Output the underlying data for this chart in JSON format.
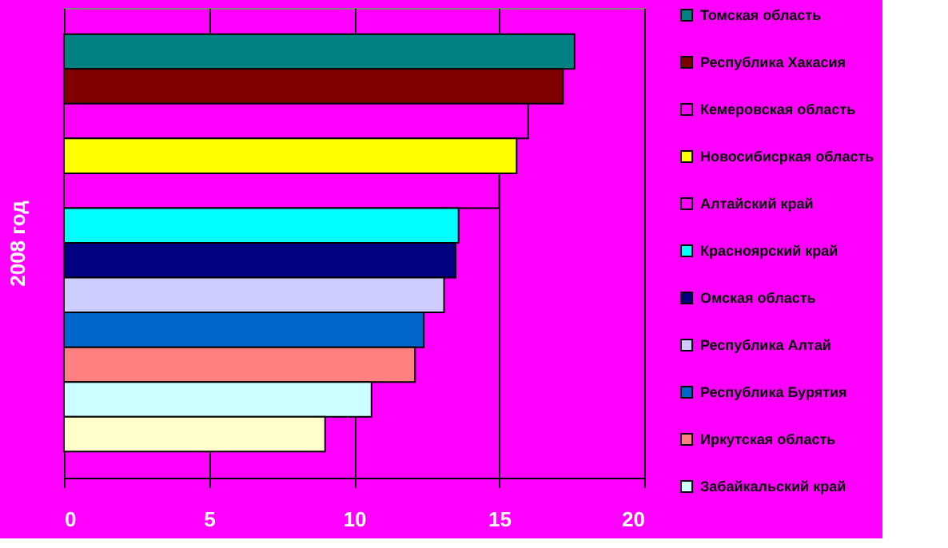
{
  "chart_data": {
    "type": "bar",
    "orientation": "horizontal",
    "ylabel": "2008 год",
    "categories": [
      null
    ],
    "series": [
      {
        "name": "Томская область",
        "color": "#008080",
        "values": [
          17.6
        ]
      },
      {
        "name": "Республика Хакасия",
        "color": "#800000",
        "values": [
          17.2
        ]
      },
      {
        "name": "Кемеровская область",
        "color": "#ff00ff",
        "values": [
          16.0
        ]
      },
      {
        "name": "Новосибисркая область",
        "color": "#ffff00",
        "values": [
          15.6
        ]
      },
      {
        "name": "Алтайский край",
        "color": "#ff00ff",
        "values": [
          15.0
        ]
      },
      {
        "name": "Красноярский край",
        "color": "#00ffff",
        "values": [
          13.6
        ]
      },
      {
        "name": "Омская область",
        "color": "#000080",
        "values": [
          13.5
        ]
      },
      {
        "name": "Республика Алтай",
        "color": "#ccccff",
        "values": [
          13.1
        ]
      },
      {
        "name": "Республика Бурятия",
        "color": "#0066cc",
        "values": [
          12.4
        ]
      },
      {
        "name": "Иркутская область",
        "color": "#ff8080",
        "values": [
          12.1
        ]
      },
      {
        "name": "Забайкальский край",
        "color": "#ccffff",
        "values": [
          10.6
        ]
      },
      {
        "color": "#ffffcc",
        "values": [
          9.0
        ]
      }
    ],
    "xlim": [
      0,
      20
    ],
    "xticks": [
      0,
      5,
      10,
      15,
      20
    ],
    "grid": "x",
    "legend": "right",
    "tick_labels": "x"
  }
}
